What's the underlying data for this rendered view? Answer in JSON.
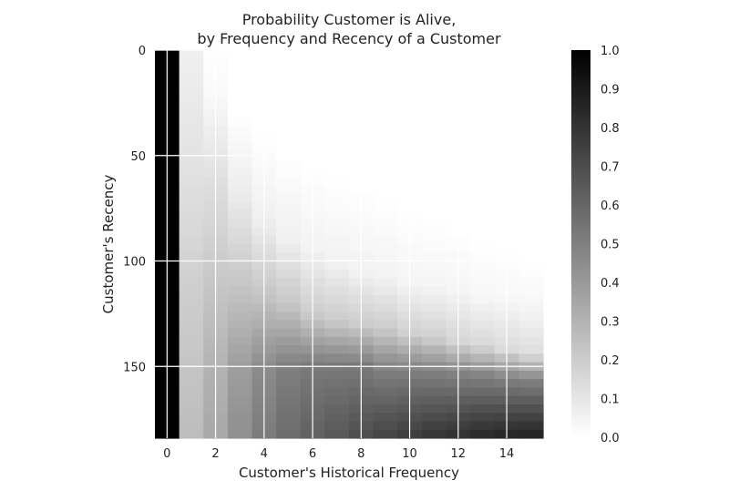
{
  "chart_data": {
    "type": "heatmap",
    "title_line1": "Probability Customer is Alive,",
    "title_line2": "by Frequency and Recency of a Customer",
    "xlabel": "Customer's Historical Frequency",
    "ylabel": "Customer's Recency",
    "x_range": [
      0,
      15
    ],
    "y_range": [
      0,
      184
    ],
    "x_ticks": [
      0,
      2,
      4,
      6,
      8,
      10,
      12,
      14
    ],
    "y_ticks": [
      0,
      50,
      100,
      150
    ],
    "colorbar_ticks": [
      "0.0",
      "0.1",
      "0.2",
      "0.3",
      "0.4",
      "0.5",
      "0.6",
      "0.7",
      "0.8",
      "0.9",
      "1.0"
    ],
    "colormap": "grayscale",
    "color_low": "#ffffff",
    "color_high": "#000000",
    "grid": true,
    "columns": [
      {
        "frequency": 0,
        "profile": [
          [
            0,
            1.0
          ],
          [
            184,
            1.0
          ]
        ]
      },
      {
        "frequency": 1,
        "profile": [
          [
            0,
            0.06
          ],
          [
            60,
            0.12
          ],
          [
            120,
            0.2
          ],
          [
            184,
            0.26
          ]
        ]
      },
      {
        "frequency": 2,
        "profile": [
          [
            0,
            0.0
          ],
          [
            20,
            0.02
          ],
          [
            60,
            0.12
          ],
          [
            110,
            0.22
          ],
          [
            150,
            0.3
          ],
          [
            184,
            0.34
          ]
        ]
      },
      {
        "frequency": 3,
        "profile": [
          [
            0,
            0.0
          ],
          [
            30,
            0.0
          ],
          [
            70,
            0.08
          ],
          [
            110,
            0.22
          ],
          [
            150,
            0.38
          ],
          [
            184,
            0.44
          ]
        ]
      },
      {
        "frequency": 4,
        "profile": [
          [
            0,
            0.0
          ],
          [
            40,
            0.0
          ],
          [
            80,
            0.06
          ],
          [
            115,
            0.22
          ],
          [
            150,
            0.45
          ],
          [
            184,
            0.52
          ]
        ]
      },
      {
        "frequency": 5,
        "profile": [
          [
            0,
            0.0
          ],
          [
            50,
            0.0
          ],
          [
            90,
            0.06
          ],
          [
            120,
            0.22
          ],
          [
            150,
            0.5
          ],
          [
            184,
            0.58
          ]
        ]
      },
      {
        "frequency": 6,
        "profile": [
          [
            0,
            0.0
          ],
          [
            55,
            0.0
          ],
          [
            95,
            0.05
          ],
          [
            125,
            0.2
          ],
          [
            150,
            0.52
          ],
          [
            184,
            0.62
          ]
        ]
      },
      {
        "frequency": 7,
        "profile": [
          [
            0,
            0.0
          ],
          [
            60,
            0.0
          ],
          [
            100,
            0.05
          ],
          [
            128,
            0.2
          ],
          [
            150,
            0.52
          ],
          [
            184,
            0.66
          ]
        ]
      },
      {
        "frequency": 8,
        "profile": [
          [
            0,
            0.0
          ],
          [
            65,
            0.0
          ],
          [
            105,
            0.05
          ],
          [
            130,
            0.2
          ],
          [
            150,
            0.52
          ],
          [
            184,
            0.7
          ]
        ]
      },
      {
        "frequency": 9,
        "profile": [
          [
            0,
            0.0
          ],
          [
            70,
            0.0
          ],
          [
            108,
            0.05
          ],
          [
            132,
            0.2
          ],
          [
            152,
            0.5
          ],
          [
            184,
            0.74
          ]
        ]
      },
      {
        "frequency": 10,
        "profile": [
          [
            0,
            0.0
          ],
          [
            75,
            0.0
          ],
          [
            110,
            0.04
          ],
          [
            134,
            0.18
          ],
          [
            152,
            0.5
          ],
          [
            184,
            0.77
          ]
        ]
      },
      {
        "frequency": 11,
        "profile": [
          [
            0,
            0.0
          ],
          [
            80,
            0.0
          ],
          [
            112,
            0.04
          ],
          [
            136,
            0.18
          ],
          [
            153,
            0.5
          ],
          [
            184,
            0.8
          ]
        ]
      },
      {
        "frequency": 12,
        "profile": [
          [
            0,
            0.0
          ],
          [
            85,
            0.0
          ],
          [
            114,
            0.04
          ],
          [
            138,
            0.16
          ],
          [
            154,
            0.5
          ],
          [
            184,
            0.82
          ]
        ]
      },
      {
        "frequency": 13,
        "profile": [
          [
            0,
            0.0
          ],
          [
            90,
            0.0
          ],
          [
            116,
            0.03
          ],
          [
            140,
            0.15
          ],
          [
            155,
            0.5
          ],
          [
            184,
            0.85
          ]
        ]
      },
      {
        "frequency": 14,
        "profile": [
          [
            0,
            0.0
          ],
          [
            95,
            0.0
          ],
          [
            118,
            0.03
          ],
          [
            142,
            0.14
          ],
          [
            156,
            0.5
          ],
          [
            184,
            0.87
          ]
        ]
      },
      {
        "frequency": 15,
        "profile": [
          [
            0,
            0.0
          ],
          [
            100,
            0.0
          ],
          [
            120,
            0.03
          ],
          [
            144,
            0.13
          ],
          [
            157,
            0.5
          ],
          [
            184,
            0.88
          ]
        ]
      }
    ]
  }
}
